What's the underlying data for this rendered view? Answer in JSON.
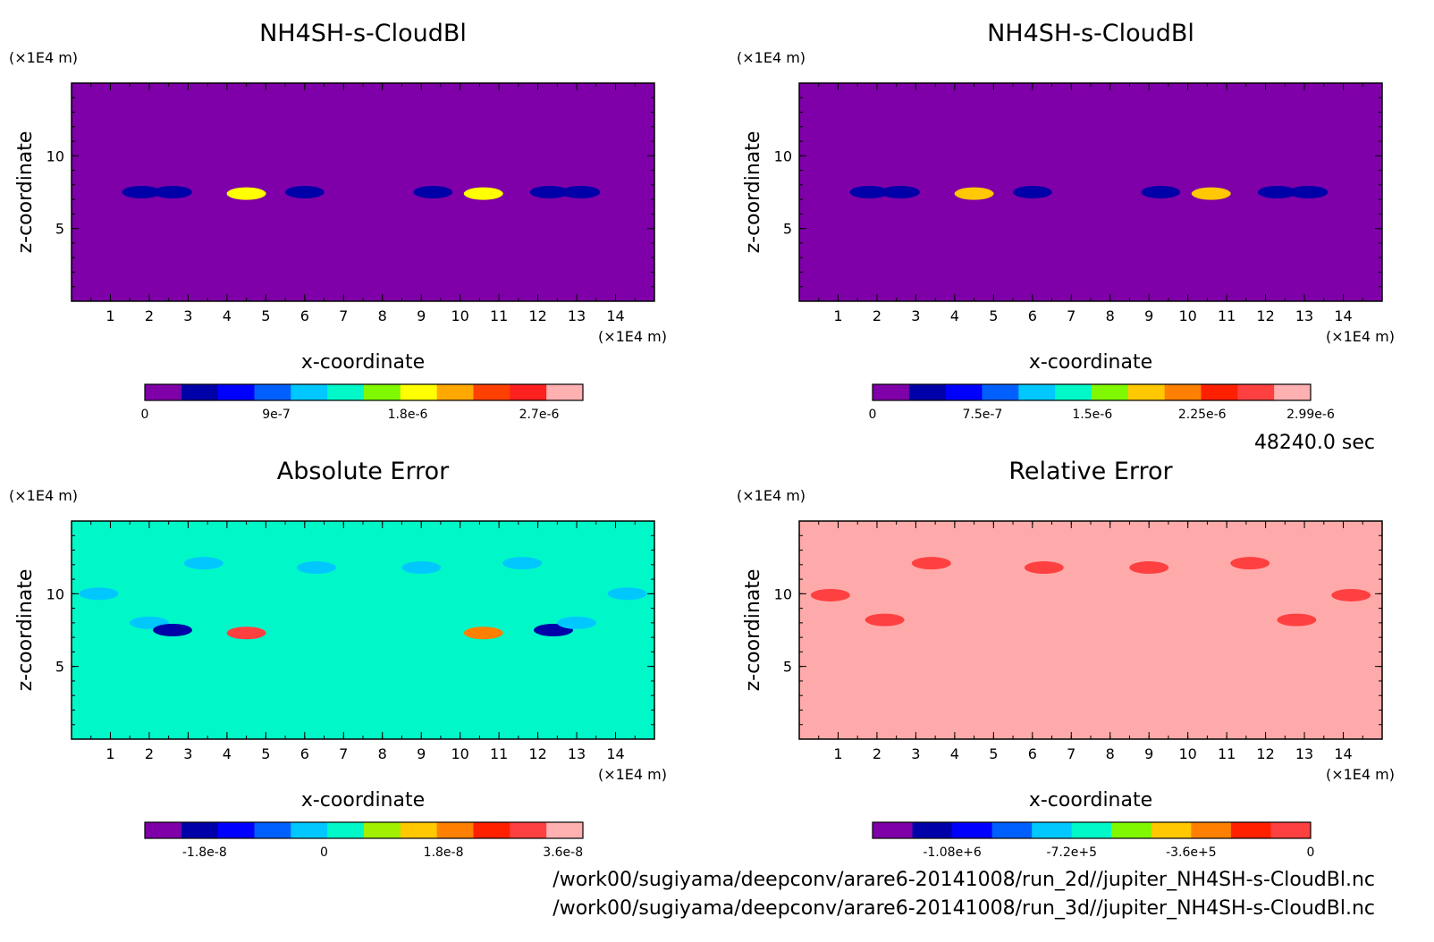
{
  "time_stamp": "48240.0 sec",
  "file_paths": [
    "/work00/sugiyama/deepconv/arare6-20141008/run_2d//jupiter_NH4SH-s-CloudBl.nc",
    "/work00/sugiyama/deepconv/arare6-20141008/run_3d//jupiter_NH4SH-s-CloudBl.nc"
  ],
  "chart_data": [
    {
      "type": "heatmap",
      "title": "NH4SH-s-CloudBl",
      "xlabel": "x-coordinate",
      "ylabel": "z-coordinate",
      "x_unit": "(×1E4 m)",
      "y_unit": "(×1E4 m)",
      "x_ticks": [
        "1",
        "2",
        "3",
        "4",
        "5",
        "6",
        "7",
        "8",
        "9",
        "10",
        "11",
        "12",
        "13",
        "14"
      ],
      "y_ticks": [
        "5",
        "10"
      ],
      "xlim": [
        0,
        15
      ],
      "ylim": [
        0,
        15
      ],
      "background_color": "#7f00a8",
      "colorbar": {
        "colors": [
          "#7f00a8",
          "#0000a8",
          "#0000ff",
          "#0060ff",
          "#00c8ff",
          "#00f8c8",
          "#80f800",
          "#ffff00",
          "#ffa800",
          "#ff4000",
          "#ff2020",
          "#ffb0b0"
        ],
        "tick_labels": [
          "0",
          "9e-7",
          "1.8e-6",
          "2.7e-6"
        ],
        "tick_values": [
          0,
          9e-07,
          1.8e-06,
          2.7e-06
        ],
        "range": [
          0,
          3e-06
        ]
      },
      "features": [
        {
          "x": 1.8,
          "z": 7.5,
          "value": 4e-07
        },
        {
          "x": 2.6,
          "z": 7.5,
          "value": 4e-07
        },
        {
          "x": 4.5,
          "z": 7.4,
          "value": 1.8e-06
        },
        {
          "x": 6.0,
          "z": 7.5,
          "value": 4e-07
        },
        {
          "x": 9.3,
          "z": 7.5,
          "value": 4e-07
        },
        {
          "x": 10.6,
          "z": 7.4,
          "value": 1.8e-06
        },
        {
          "x": 12.3,
          "z": 7.5,
          "value": 4e-07
        },
        {
          "x": 13.1,
          "z": 7.5,
          "value": 4e-07
        }
      ]
    },
    {
      "type": "heatmap",
      "title": "NH4SH-s-CloudBl",
      "xlabel": "x-coordinate",
      "ylabel": "z-coordinate",
      "x_unit": "(×1E4 m)",
      "y_unit": "(×1E4 m)",
      "x_ticks": [
        "1",
        "2",
        "3",
        "4",
        "5",
        "6",
        "7",
        "8",
        "9",
        "10",
        "11",
        "12",
        "13",
        "14"
      ],
      "y_ticks": [
        "5",
        "10"
      ],
      "xlim": [
        0,
        15
      ],
      "ylim": [
        0,
        15
      ],
      "background_color": "#7f00a8",
      "colorbar": {
        "colors": [
          "#7f00a8",
          "#0000a8",
          "#0000ff",
          "#0060ff",
          "#00c8ff",
          "#00f8c8",
          "#80f800",
          "#ffc800",
          "#ff8000",
          "#ff2000",
          "#ff4040",
          "#ffb0b0"
        ],
        "tick_labels": [
          "0",
          "7.5e-7",
          "1.5e-6",
          "2.25e-6",
          "2.99e-6"
        ],
        "tick_values": [
          0,
          7.5e-07,
          1.5e-06,
          2.25e-06,
          2.99e-06
        ],
        "range": [
          0,
          2.99e-06
        ]
      },
      "features": [
        {
          "x": 1.8,
          "z": 7.5,
          "value": 4e-07
        },
        {
          "x": 2.6,
          "z": 7.5,
          "value": 4e-07
        },
        {
          "x": 4.5,
          "z": 7.4,
          "value": 1.8e-06
        },
        {
          "x": 6.0,
          "z": 7.5,
          "value": 4e-07
        },
        {
          "x": 9.3,
          "z": 7.5,
          "value": 4e-07
        },
        {
          "x": 10.6,
          "z": 7.4,
          "value": 1.8e-06
        },
        {
          "x": 12.3,
          "z": 7.5,
          "value": 4e-07
        },
        {
          "x": 13.1,
          "z": 7.5,
          "value": 4e-07
        }
      ]
    },
    {
      "type": "heatmap",
      "title": "Absolute Error",
      "xlabel": "x-coordinate",
      "ylabel": "z-coordinate",
      "x_unit": "(×1E4 m)",
      "y_unit": "(×1E4 m)",
      "x_ticks": [
        "1",
        "2",
        "3",
        "4",
        "5",
        "6",
        "7",
        "8",
        "9",
        "10",
        "11",
        "12",
        "13",
        "14"
      ],
      "y_ticks": [
        "5",
        "10"
      ],
      "xlim": [
        0,
        15
      ],
      "ylim": [
        0,
        15
      ],
      "background_color": "#00f8c8",
      "colorbar": {
        "colors": [
          "#7f00a8",
          "#0000a8",
          "#0000ff",
          "#0060ff",
          "#00c8ff",
          "#00f8c8",
          "#a0f000",
          "#ffc800",
          "#ff8000",
          "#ff2000",
          "#ff4040",
          "#ffb0b0"
        ],
        "tick_labels": [
          "-1.8e-8",
          "0",
          "1.8e-8",
          "3.6e-8"
        ],
        "tick_values": [
          -1.8e-08,
          0,
          1.8e-08,
          3.6e-08
        ],
        "range": [
          -2.7e-08,
          3.9e-08
        ]
      },
      "features": [
        {
          "x": 0.7,
          "z": 10.0,
          "value": -5e-09
        },
        {
          "x": 2.0,
          "z": 8.0,
          "value": -5e-09
        },
        {
          "x": 2.6,
          "z": 7.5,
          "value": -1.8e-08
        },
        {
          "x": 3.4,
          "z": 12.1,
          "value": -5e-09
        },
        {
          "x": 4.5,
          "z": 7.3,
          "value": 3e-08
        },
        {
          "x": 6.3,
          "z": 11.8,
          "value": -5e-09
        },
        {
          "x": 9.0,
          "z": 11.8,
          "value": -5e-09
        },
        {
          "x": 10.6,
          "z": 7.3,
          "value": 2e-08
        },
        {
          "x": 11.6,
          "z": 12.1,
          "value": -5e-09
        },
        {
          "x": 12.4,
          "z": 7.5,
          "value": -1.8e-08
        },
        {
          "x": 13.0,
          "z": 8.0,
          "value": -5e-09
        },
        {
          "x": 14.3,
          "z": 10.0,
          "value": -5e-09
        }
      ]
    },
    {
      "type": "heatmap",
      "title": "Relative Error",
      "xlabel": "x-coordinate",
      "ylabel": "z-coordinate",
      "x_unit": "(×1E4 m)",
      "y_unit": "(×1E4 m)",
      "x_ticks": [
        "1",
        "2",
        "3",
        "4",
        "5",
        "6",
        "7",
        "8",
        "9",
        "10",
        "11",
        "12",
        "13",
        "14"
      ],
      "y_ticks": [
        "5",
        "10"
      ],
      "xlim": [
        0,
        15
      ],
      "ylim": [
        0,
        15
      ],
      "background_color": "#ffaaaa",
      "colorbar": {
        "colors": [
          "#7f00a8",
          "#0000a8",
          "#0000ff",
          "#0060ff",
          "#00c8ff",
          "#00f8c8",
          "#80f800",
          "#ffc800",
          "#ff8000",
          "#ff2000",
          "#ff4040"
        ],
        "tick_labels": [
          "-1.08e+6",
          "-7.2e+5",
          "-3.6e+5",
          "0"
        ],
        "tick_values": [
          -1080000,
          -720000,
          -360000,
          0
        ],
        "range": [
          -1320000,
          0
        ]
      },
      "features": [
        {
          "x": 0.8,
          "z": 9.9,
          "value": -60000
        },
        {
          "x": 2.2,
          "z": 8.2,
          "value": -60000
        },
        {
          "x": 3.4,
          "z": 12.1,
          "value": -60000
        },
        {
          "x": 6.3,
          "z": 11.8,
          "value": -60000
        },
        {
          "x": 9.0,
          "z": 11.8,
          "value": -60000
        },
        {
          "x": 11.6,
          "z": 12.1,
          "value": -60000
        },
        {
          "x": 12.8,
          "z": 8.2,
          "value": -60000
        },
        {
          "x": 14.2,
          "z": 9.9,
          "value": -60000
        }
      ]
    }
  ]
}
